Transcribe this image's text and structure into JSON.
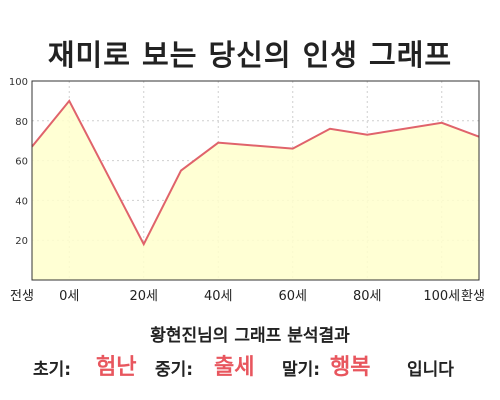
{
  "chart_data": {
    "type": "area",
    "title": "재미로 보는 당신의 인생 그래프",
    "x_tick_labels": [
      "전생",
      "0세",
      "20세",
      "40세",
      "60세",
      "80세",
      "100세",
      "환생"
    ],
    "y_ticks": [
      20,
      40,
      60,
      80,
      100
    ],
    "ylim": [
      0,
      100
    ],
    "grid": true,
    "series": [
      {
        "points": [
          {
            "x": "전생",
            "y": 67
          },
          {
            "x": "0세",
            "y": 90
          },
          {
            "x": "20세",
            "y": 18
          },
          {
            "x": "30세",
            "y": 55
          },
          {
            "x": "40세",
            "y": 69
          },
          {
            "x": "60세",
            "y": 66
          },
          {
            "x": "70세",
            "y": 76
          },
          {
            "x": "80세",
            "y": 73
          },
          {
            "x": "100세",
            "y": 79
          },
          {
            "x": "환생",
            "y": 72
          }
        ]
      }
    ]
  },
  "colors": {
    "line": "#e0636b",
    "fill": "#ffffcc",
    "highlight": "#e8565e"
  },
  "subtitle": "황현진님의 그래프 분석결과",
  "summary": {
    "early_label": "초기:",
    "early_value": "험난",
    "middle_label": "중기:",
    "middle_value": "출세",
    "late_label": "말기:",
    "late_value": "행복",
    "ending": "입니다"
  }
}
